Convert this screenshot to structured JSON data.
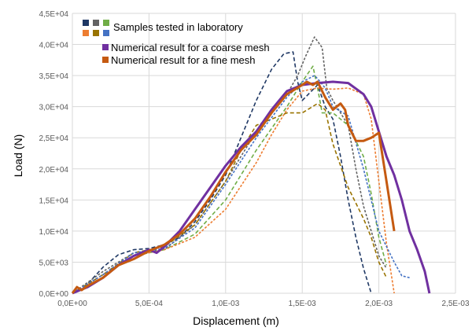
{
  "chart_data": {
    "type": "line",
    "xlabel": "Displacement (m)",
    "ylabel": "Load (N)",
    "xlim": [
      0,
      0.0025
    ],
    "ylim": [
      0,
      45000
    ],
    "grid": true,
    "x_tick_labels": [
      "0,0E+00",
      "5,0E-04",
      "1,0E-03",
      "1,5E-03",
      "2,0E-03",
      "2,5E-03"
    ],
    "x_ticks": [
      0,
      0.0005,
      0.001,
      0.0015,
      0.002,
      0.0025
    ],
    "y_tick_labels": [
      "0,0E+00",
      "5,0E+03",
      "1,0E+04",
      "1,5E+04",
      "2,0E+04",
      "2,5E+04",
      "3,0E+04",
      "3,5E+04",
      "4,0E+04",
      "4,5E+04"
    ],
    "y_ticks": [
      0,
      5000,
      10000,
      15000,
      20000,
      25000,
      30000,
      35000,
      40000,
      45000
    ],
    "legend_position": "top-left",
    "legend": {
      "lab_label": "Samples tested in laboratory",
      "lab_colors": [
        "#1f3864",
        "#636363",
        "#70ad47",
        "#ed7d31",
        "#997300",
        "#4472c4"
      ],
      "coarse_label": "Numerical result for a coarse mesh",
      "fine_label": "Numerical result for a fine mesh"
    },
    "series": [
      {
        "group": "lab",
        "color": "#1f3864",
        "style": "dashed",
        "x": [
          0,
          0.0001,
          0.0002,
          0.0003,
          0.0004,
          0.0005,
          0.0006,
          0.0007,
          0.0008,
          0.0009,
          0.001,
          0.0011,
          0.0012,
          0.0013,
          0.00138,
          0.00144,
          0.00147,
          0.0015,
          0.0016,
          0.00165,
          0.0017,
          0.00175,
          0.0018,
          0.00185,
          0.0019,
          0.00195
        ],
        "y": [
          0,
          1500,
          4200,
          6200,
          7000,
          7200,
          7800,
          9000,
          11500,
          15000,
          19000,
          25000,
          31000,
          36000,
          38500,
          38800,
          34000,
          31000,
          33500,
          30000,
          28000,
          22000,
          15000,
          9000,
          4000,
          0
        ]
      },
      {
        "group": "lab",
        "color": "#636363",
        "style": "dashed",
        "x": [
          0,
          0.0002,
          0.0004,
          0.0006,
          0.0008,
          0.001,
          0.0012,
          0.0014,
          0.00147,
          0.00152,
          0.00158,
          0.00163,
          0.00166,
          0.0017,
          0.0018,
          0.00185,
          0.0019,
          0.00195,
          0.002,
          0.00205
        ],
        "y": [
          0,
          3500,
          6500,
          7000,
          11000,
          18000,
          26000,
          32000,
          35000,
          38000,
          41200,
          39500,
          33000,
          31000,
          27000,
          20000,
          14000,
          10000,
          6000,
          4000
        ]
      },
      {
        "group": "lab",
        "color": "#70ad47",
        "style": "dashed",
        "x": [
          0,
          0.0002,
          0.0004,
          0.0006,
          0.0008,
          0.001,
          0.0012,
          0.0014,
          0.0015,
          0.00157,
          0.0016,
          0.00163,
          0.0017,
          0.0018,
          0.0019,
          0.00195,
          0.002,
          0.00205
        ],
        "y": [
          0,
          3000,
          6000,
          7000,
          9500,
          15000,
          23000,
          30000,
          34000,
          36500,
          33000,
          29000,
          29000,
          27000,
          22000,
          16000,
          9000,
          4500
        ]
      },
      {
        "group": "lab",
        "color": "#ed7d31",
        "style": "dashed",
        "x": [
          0,
          0.0002,
          0.0004,
          0.0006,
          0.0008,
          0.001,
          0.0012,
          0.0013,
          0.0014,
          0.0015,
          0.0016,
          0.0017,
          0.0018,
          0.0019,
          0.00195,
          0.002,
          0.00205,
          0.0021
        ],
        "y": [
          0,
          3000,
          6000,
          7000,
          9000,
          13500,
          21000,
          25500,
          29500,
          32500,
          33000,
          32800,
          33000,
          32000,
          28000,
          18000,
          8000,
          0
        ]
      },
      {
        "group": "lab",
        "color": "#997300",
        "style": "dashed",
        "x": [
          0,
          0.0002,
          0.0004,
          0.0006,
          0.0008,
          0.001,
          0.0011,
          0.0012,
          0.0013,
          0.0014,
          0.0015,
          0.0016,
          0.00165,
          0.0017,
          0.0018,
          0.0019,
          0.00195,
          0.002,
          0.00205
        ],
        "y": [
          0,
          3000,
          6500,
          7500,
          11000,
          18000,
          23000,
          27000,
          28000,
          29000,
          29000,
          30500,
          29500,
          24000,
          17000,
          12000,
          9000,
          5000,
          2500
        ]
      },
      {
        "group": "lab",
        "color": "#4472c4",
        "style": "dashed",
        "x": [
          0,
          0.0002,
          0.0004,
          0.0006,
          0.0008,
          0.001,
          0.0012,
          0.0014,
          0.0015,
          0.00158,
          0.0016,
          0.00165,
          0.0017,
          0.0018,
          0.0019,
          0.002,
          0.0021,
          0.00215,
          0.0022
        ],
        "y": [
          0,
          3000,
          6500,
          7200,
          10500,
          17500,
          25000,
          31500,
          34000,
          35000,
          34500,
          33000,
          30000,
          28500,
          20000,
          10000,
          5000,
          2800,
          2500
        ]
      },
      {
        "group": "coarse",
        "color": "#7030a0",
        "style": "solid",
        "x": [
          0,
          5e-05,
          0.0001,
          0.0002,
          0.0003,
          0.0004,
          0.0005,
          0.00055,
          0.0006,
          0.0007,
          0.0008,
          0.0009,
          0.001,
          0.0011,
          0.0012,
          0.0013,
          0.0014,
          0.0015,
          0.0016,
          0.0017,
          0.0018,
          0.0019,
          0.00195,
          0.002,
          0.00205,
          0.0021,
          0.00215,
          0.0022,
          0.00225,
          0.0023,
          0.00233
        ],
        "y": [
          0,
          500,
          1000,
          2500,
          4500,
          6000,
          7000,
          6500,
          7500,
          10000,
          13500,
          17000,
          20500,
          23500,
          26000,
          29500,
          32500,
          33500,
          33800,
          34000,
          33800,
          32000,
          30000,
          26000,
          22000,
          19000,
          15000,
          10000,
          7000,
          3500,
          0
        ]
      },
      {
        "group": "fine",
        "color": "#c55a11",
        "style": "solid",
        "x": [
          0,
          3e-05,
          6e-05,
          0.0001,
          0.0002,
          0.0003,
          0.0004,
          0.0005,
          0.0006,
          0.0007,
          0.0008,
          0.0009,
          0.001,
          0.0011,
          0.0012,
          0.0013,
          0.0014,
          0.0015,
          0.00153,
          0.00157,
          0.0016,
          0.00165,
          0.0017,
          0.00175,
          0.00178,
          0.0018,
          0.00185,
          0.0019,
          0.00195,
          0.002,
          0.00205,
          0.0021
        ],
        "y": [
          0,
          1000,
          500,
          1200,
          2500,
          4500,
          5500,
          6800,
          7800,
          9500,
          12000,
          15500,
          19500,
          23000,
          25500,
          29000,
          32000,
          33500,
          34000,
          33500,
          34000,
          31500,
          29500,
          30500,
          29500,
          27000,
          24500,
          24500,
          25000,
          25800,
          18000,
          10000
        ]
      }
    ]
  }
}
